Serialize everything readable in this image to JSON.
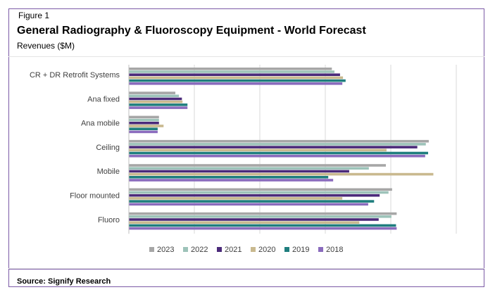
{
  "figure_label": "Figure 1",
  "source": "Source: Signify Research",
  "chart_data": {
    "type": "bar",
    "orientation": "horizontal",
    "title": "General Radiography & Fluoroscopy Equipment - World Forecast",
    "subtitle": "Revenues ($M)",
    "xlabel": "",
    "ylabel": "",
    "grid": true,
    "legend_position": "bottom",
    "categories": [
      "CR + DR Retrofit Systems",
      "Ana fixed",
      "Ana mobile",
      "Ceiling",
      "Mobile",
      "Floor mounted",
      "Fluoro"
    ],
    "series": [
      {
        "name": "2023",
        "color": "#a6a6a6",
        "values": [
          62.0,
          14.2,
          9.2,
          91.6,
          78.5,
          80.4,
          81.8
        ]
      },
      {
        "name": "2022",
        "color": "#9dc3b9",
        "values": [
          62.8,
          15.3,
          9.2,
          90.7,
          73.3,
          79.3,
          80.2
        ]
      },
      {
        "name": "2021",
        "color": "#4b2a7a",
        "values": [
          64.5,
          16.2,
          9.2,
          88.1,
          67.3,
          76.6,
          76.3
        ]
      },
      {
        "name": "2020",
        "color": "#c9b98f",
        "values": [
          65.4,
          16.4,
          10.6,
          78.7,
          93.0,
          65.2,
          70.4
        ]
      },
      {
        "name": "2019",
        "color": "#1f7e7e",
        "values": [
          66.2,
          17.9,
          8.8,
          91.4,
          60.9,
          74.9,
          81.6
        ]
      },
      {
        "name": "2018",
        "color": "#8a6bbd",
        "values": [
          65.2,
          17.9,
          8.8,
          90.5,
          62.4,
          73.1,
          81.8
        ]
      }
    ],
    "xlim": [
      0,
      100
    ]
  }
}
